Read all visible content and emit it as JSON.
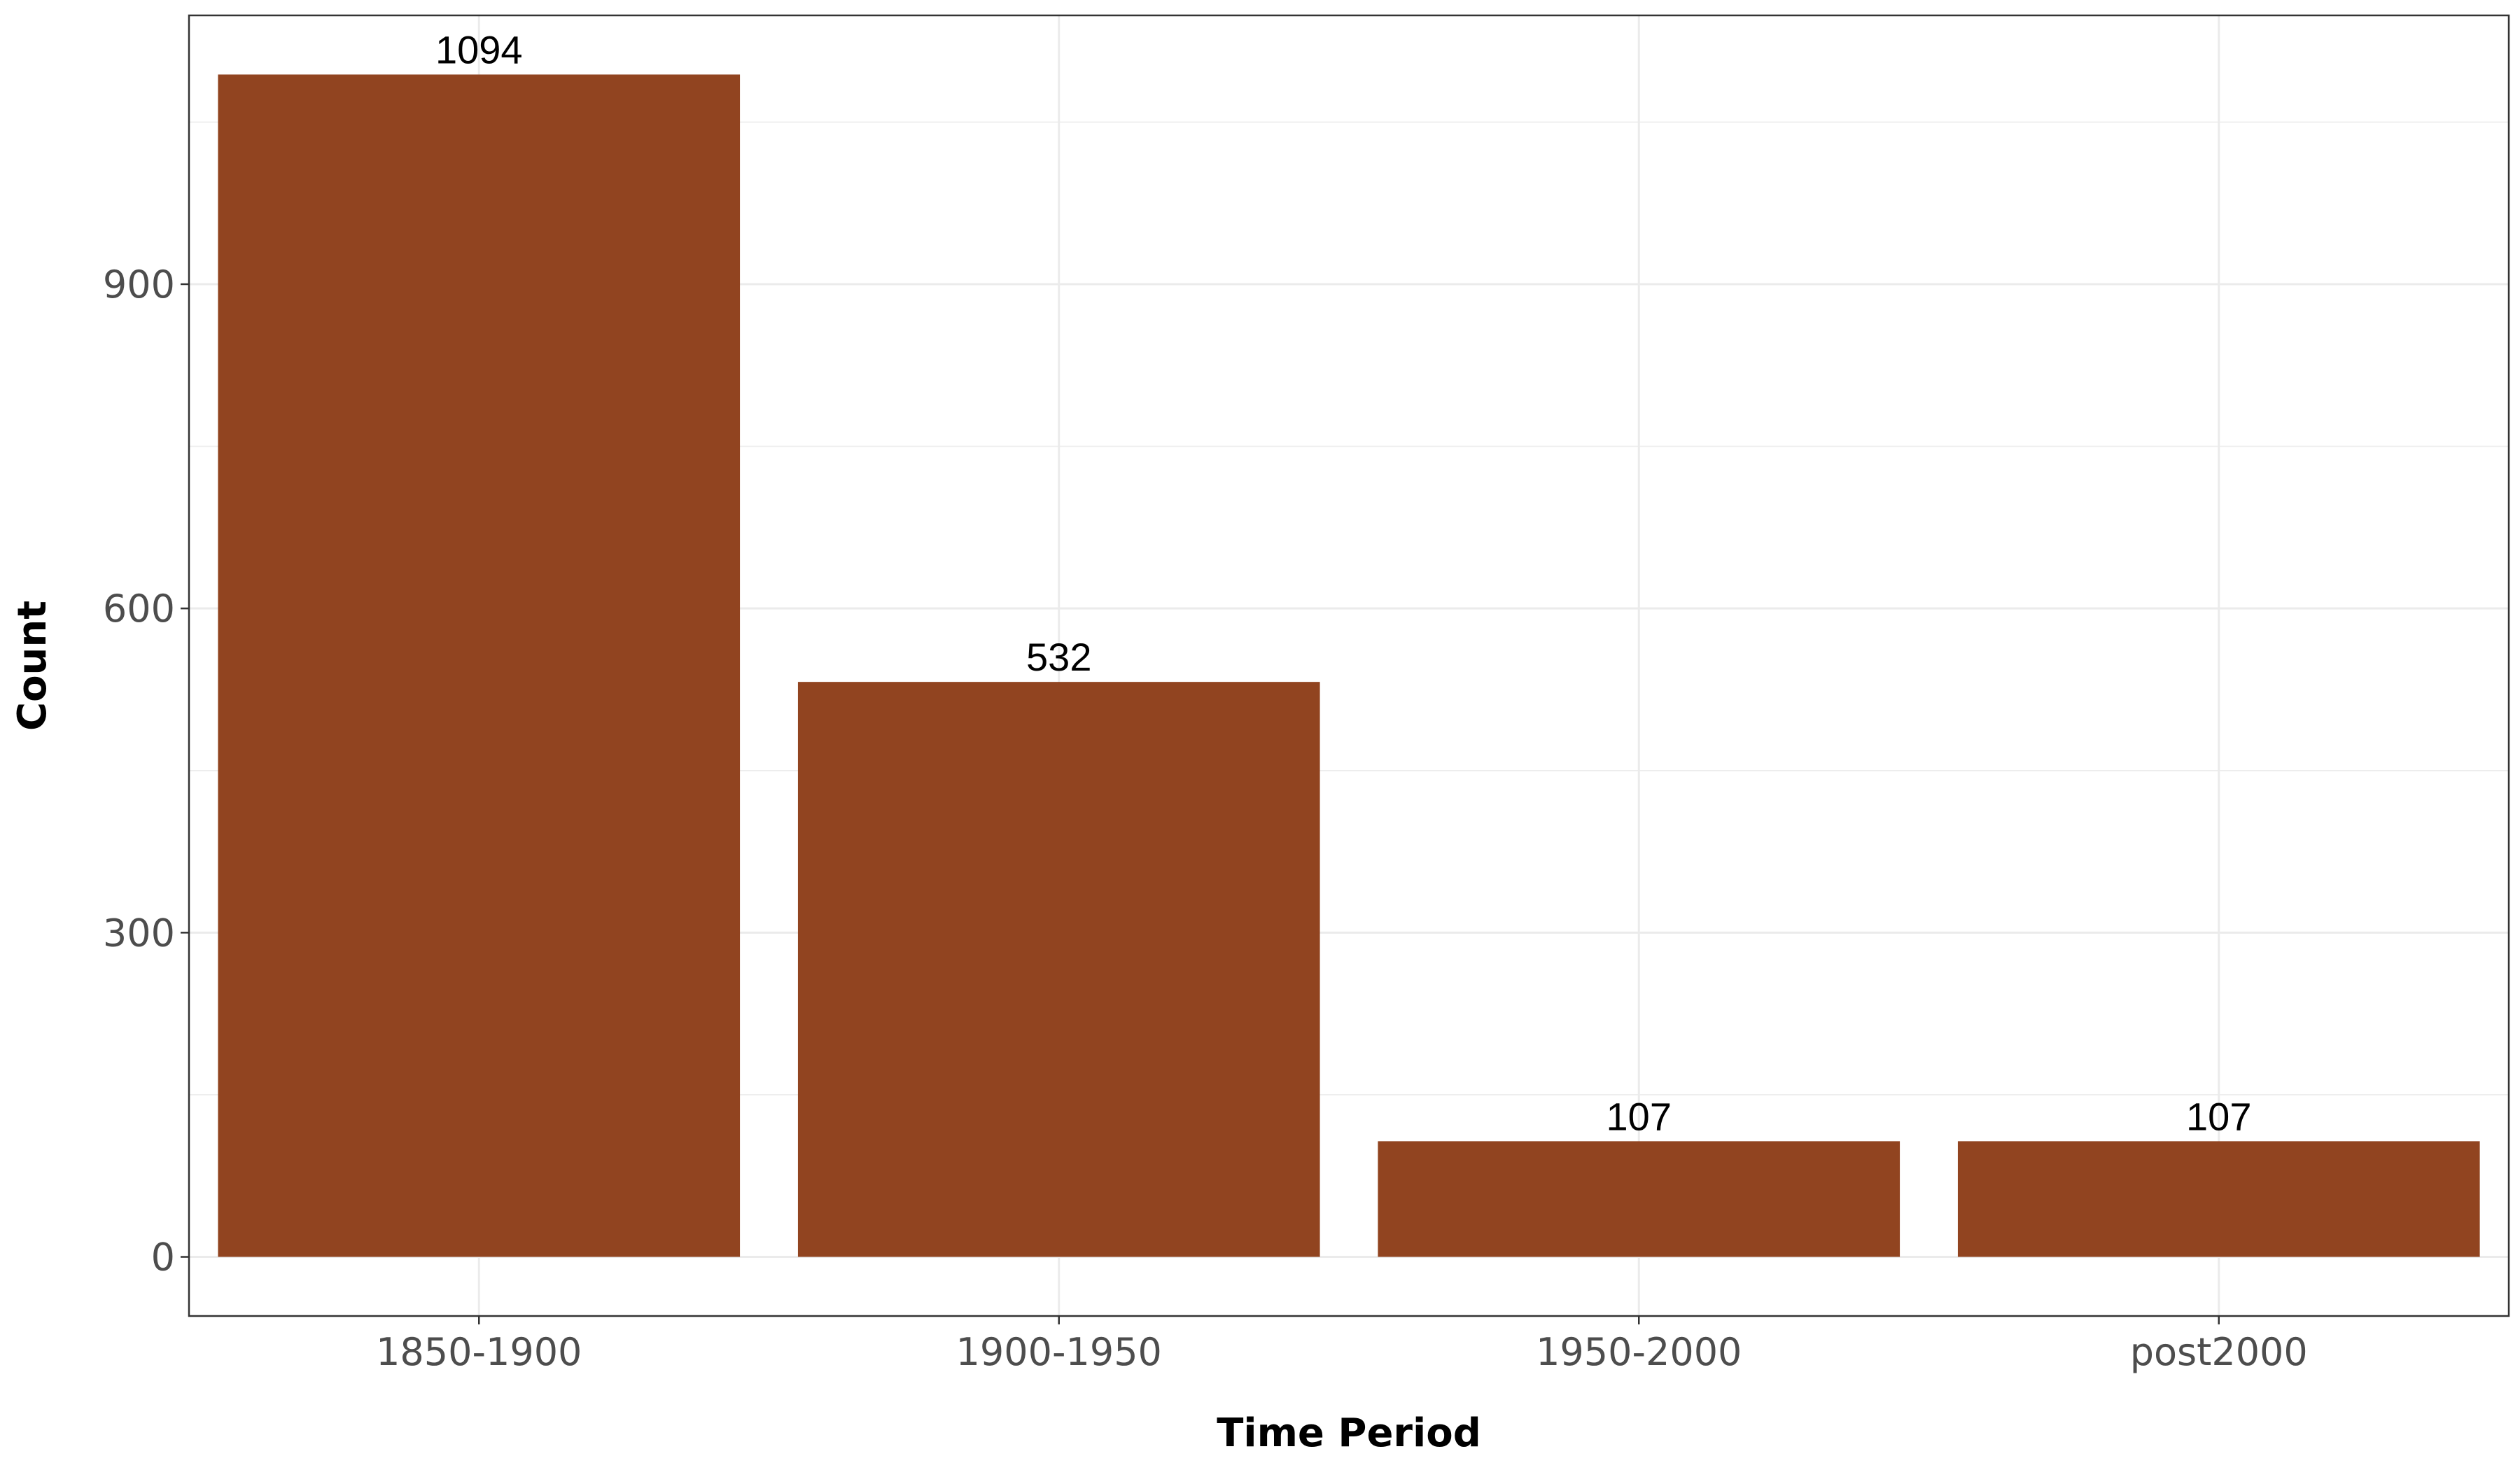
{
  "chart_data": {
    "type": "bar",
    "categories": [
      "1850-1900",
      "1900-1950",
      "1950-2000",
      "post2000"
    ],
    "values": [
      1094,
      532,
      107,
      107
    ],
    "data_labels": [
      "1094",
      "532",
      "107",
      "107"
    ],
    "xlabel": "Time Period",
    "ylabel": "Count",
    "ylim": [
      -54.7,
      1148.7
    ],
    "yticks": [
      0,
      300,
      600,
      900
    ],
    "ytick_labels": [
      "0",
      "300",
      "600",
      "900"
    ],
    "grid": true,
    "legend": "none",
    "colors": {
      "bar": "#914420",
      "grid": "#ebebeb",
      "panel_border": "#333333",
      "tick_text": "#4d4d4d",
      "title_text": "#000000"
    }
  }
}
